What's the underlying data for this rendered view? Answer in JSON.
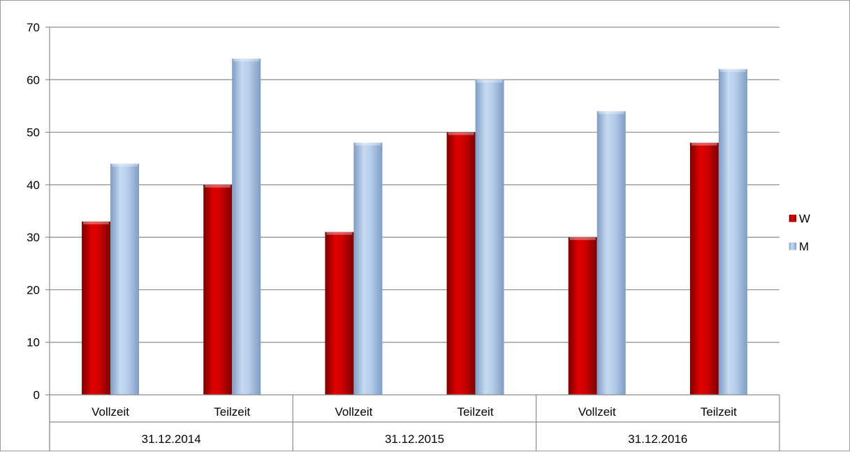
{
  "chart_data": {
    "type": "bar",
    "groups": [
      "31.12.2014",
      "31.12.2015",
      "31.12.2016"
    ],
    "categories": [
      "Vollzeit",
      "Teilzeit",
      "Vollzeit",
      "Teilzeit",
      "Vollzeit",
      "Teilzeit"
    ],
    "series": [
      {
        "name": "W",
        "color": "#c00000",
        "values": [
          33,
          40,
          31,
          50,
          30,
          48
        ]
      },
      {
        "name": "M",
        "color": "#95b3d7",
        "values": [
          44,
          64,
          48,
          60,
          54,
          62
        ]
      }
    ],
    "ylim": [
      0,
      70
    ],
    "yticks": [
      0,
      10,
      20,
      30,
      40,
      50,
      60,
      70
    ],
    "grid": true,
    "legend": "right",
    "title": "",
    "xlabel": "",
    "ylabel": ""
  }
}
